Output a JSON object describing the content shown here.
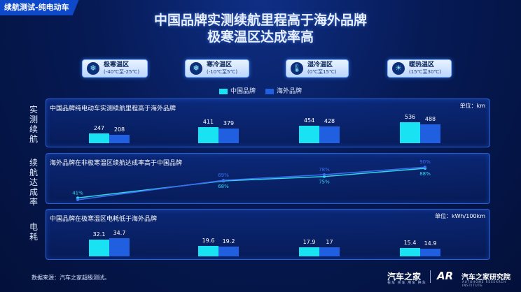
{
  "header": {
    "tag": "续航测试-纯电动车",
    "title_line1": "中国品牌实测续航里程高于海外品牌",
    "title_line2": "极寒温区达成率高"
  },
  "zones": [
    {
      "name": "极寒温区",
      "range": "(-40℃至-25℃)",
      "icon": "snowflake-icon"
    },
    {
      "name": "寒冷温区",
      "range": "(-10℃至5℃)",
      "icon": "snowflake-icon"
    },
    {
      "name": "湿冷温区",
      "range": "(0℃至15℃)",
      "icon": "thermometer-icon"
    },
    {
      "name": "暖热温区",
      "range": "(15℃至30℃)",
      "icon": "sun-icon"
    }
  ],
  "legend": {
    "series1": "中国品牌",
    "series2": "海外品牌"
  },
  "colors": {
    "china": "#19e2f2",
    "overseas": "#1f5fe0",
    "line_china": "#2fd7ec",
    "line_overseas": "#3c6ff0"
  },
  "sections": {
    "range": "实测续航",
    "rate": "续航达成率",
    "energy": "电耗"
  },
  "chart_data": [
    {
      "type": "bar",
      "title": "中国品牌纯电动车实测续航里程高于海外品牌",
      "unit": "单位：km",
      "categories": [
        "极寒温区",
        "寒冷温区",
        "湿冷温区",
        "暖热温区"
      ],
      "series": [
        {
          "name": "中国品牌",
          "values": [
            247,
            411,
            454,
            536
          ]
        },
        {
          "name": "海外品牌",
          "values": [
            208,
            379,
            428,
            488
          ]
        }
      ]
    },
    {
      "type": "line",
      "title": "海外品牌在非极寒温区续航达成率高于中国品牌",
      "categories": [
        "极寒温区",
        "寒冷温区",
        "湿冷温区",
        "暖热温区"
      ],
      "series": [
        {
          "name": "中国品牌",
          "values": [
            41,
            68,
            75,
            88
          ],
          "labels": [
            "41%",
            "68%",
            "75%",
            "88%"
          ]
        },
        {
          "name": "海外品牌",
          "values": [
            38,
            69,
            78,
            90
          ],
          "labels": [
            "38%",
            "69%",
            "78%",
            "90%"
          ]
        }
      ]
    },
    {
      "type": "bar",
      "title": "中国品牌在极寒温区电耗低于海外品牌",
      "unit": "单位：kWh/100km",
      "categories": [
        "极寒温区",
        "寒冷温区",
        "湿冷温区",
        "暖热温区"
      ],
      "series": [
        {
          "name": "中国品牌",
          "values": [
            32.1,
            19.6,
            17.9,
            15.4
          ]
        },
        {
          "name": "海外品牌",
          "values": [
            34.7,
            19.2,
            17,
            14.9
          ]
        }
      ]
    }
  ],
  "footer": {
    "source": "数据来源：汽车之家超级测试。",
    "brand1": "汽车之家",
    "brand1_sub": "看车 买车 用车 换车",
    "logo": "AR",
    "brand2": "汽车之家研究院",
    "brand2_sub": "AUTOHOME RESEARCH INSTITUTE"
  }
}
